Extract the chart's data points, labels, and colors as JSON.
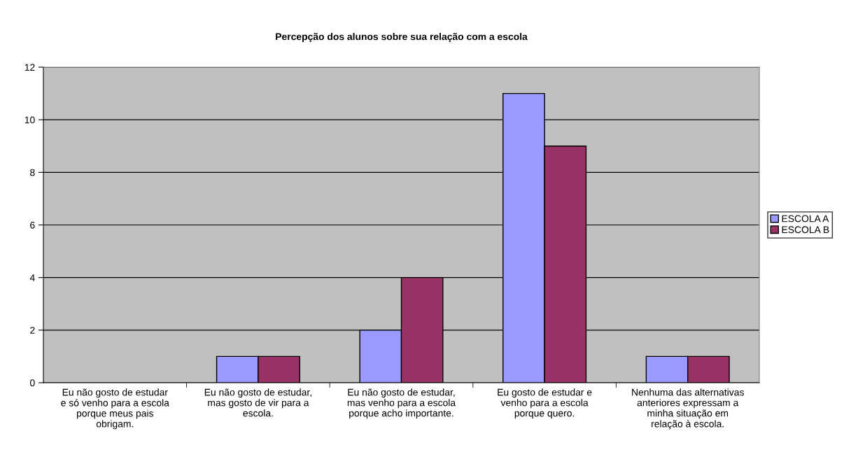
{
  "chart_data": {
    "type": "bar",
    "title": "Percepção dos alunos sobre sua relação com a escola",
    "categories": [
      "Eu não gosto de estudar e só venho para a escola porque meus pais obrigam.",
      "Eu não gosto de estudar, mas gosto de vir para a escola.",
      "Eu não gosto de estudar, mas venho para a escola porque acho importante.",
      "Eu gosto de estudar e venho para a escola porque quero.",
      "Nenhuma das alternativas anteriores expressam a minha situação em relação à escola."
    ],
    "series": [
      {
        "name": "ESCOLA A",
        "color": "#9999ff",
        "values": [
          0,
          1,
          2,
          11,
          1
        ]
      },
      {
        "name": "ESCOLA B",
        "color": "#993366",
        "values": [
          0,
          1,
          4,
          9,
          1
        ]
      }
    ],
    "ylim": [
      0,
      12
    ],
    "yticks": [
      0,
      2,
      4,
      6,
      8,
      10,
      12
    ],
    "grid": "y",
    "legend": "right"
  }
}
